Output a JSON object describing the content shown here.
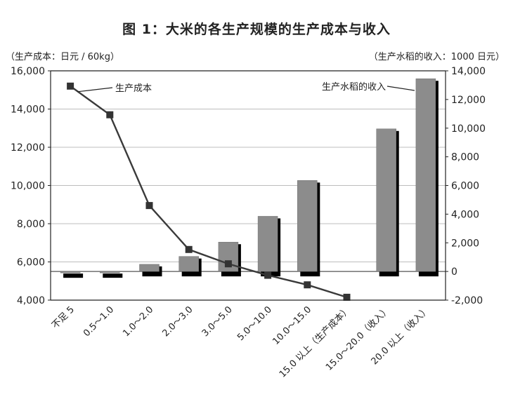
{
  "chart_data": {
    "type": "bar+line",
    "title": "图 1：大米的各生产规模的生产成本与收入",
    "ylabel_left": "（生产成本：日元 / 60kg）",
    "ylabel_right": "（生产水稻的收入：1000 日元）",
    "categories": [
      "不足 5",
      "0.5～1.0",
      "1.0～2.0",
      "2.0～3.0",
      "3.0～5.0",
      "5.0～10.0",
      "10.0～15.0",
      "15.0 以上（生产成本）",
      "15.0～20.0（收入）",
      "20.0 以上（收入）"
    ],
    "yticks_left": [
      "4,000",
      "6,000",
      "8,000",
      "10,000",
      "12,000",
      "14,000",
      "16,000"
    ],
    "yticks_right": [
      "-2,000",
      "0",
      "2,000",
      "4,000",
      "6,000",
      "8,000",
      "10,000",
      "12,000",
      "14,000"
    ],
    "ylim_left": [
      4000,
      16000
    ],
    "ylim_right": [
      -2000,
      14000
    ],
    "grid": true,
    "series": [
      {
        "name": "生产成本",
        "axis": "left",
        "type": "line",
        "values": [
          15200,
          13700,
          8950,
          6650,
          5900,
          5300,
          4800,
          4150,
          null,
          null
        ]
      },
      {
        "name": "生产水稻的收入",
        "axis": "right",
        "type": "bar",
        "values": [
          -100,
          -50,
          500,
          1050,
          2050,
          3850,
          6350,
          null,
          9950,
          13450
        ]
      }
    ],
    "annotations": [
      "生产成本",
      "生产水稻的收入"
    ],
    "colors": {
      "bar": "#8c8c8c",
      "bar_shadow": "#000000",
      "line": "#3a3a3a",
      "marker": "#333333",
      "grid": "#bdbdbd"
    }
  }
}
